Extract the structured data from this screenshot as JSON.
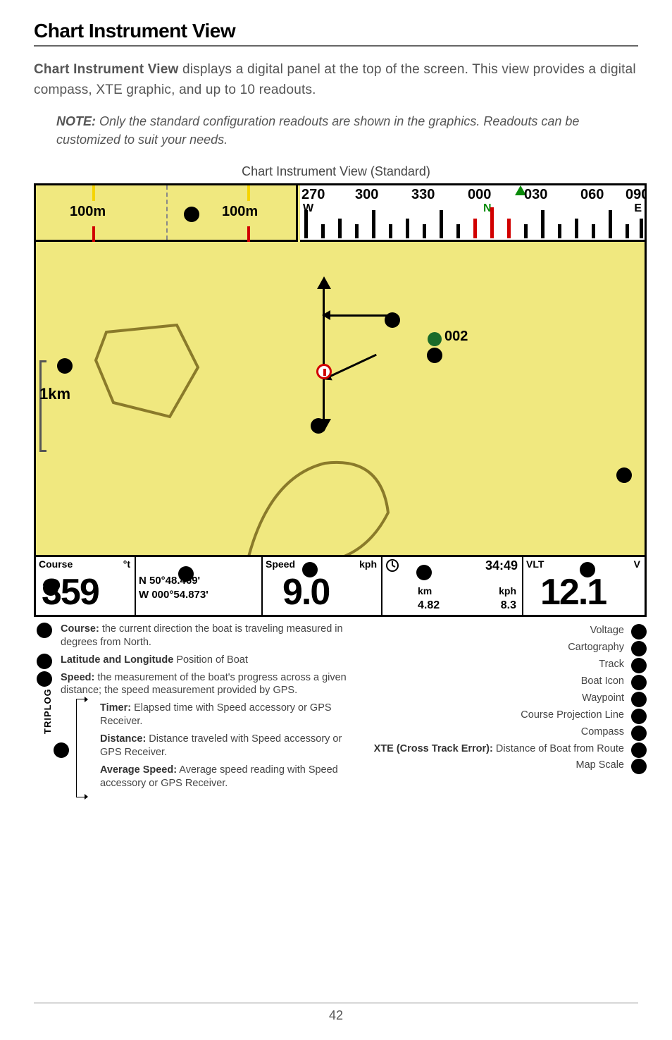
{
  "heading": "Chart Instrument View",
  "intro_bold": "Chart Instrument View",
  "intro_rest": " displays a digital panel at the top of the screen. This view provides a digital compass, XTE graphic, and up to 10 readouts.",
  "note_bold": "NOTE:",
  "note_rest": " Only the standard configuration readouts are shown in the graphics. Readouts can be customized to suit your needs.",
  "figure_caption": "Chart Instrument View (Standard)",
  "xte": {
    "left_label": "100m",
    "right_label": "100m"
  },
  "compass": {
    "values": [
      "270",
      "300",
      "330",
      "000",
      "030",
      "060",
      "090"
    ],
    "n_label": "N",
    "w_label": "W",
    "e_label": "E"
  },
  "map": {
    "waypoint_label": "002",
    "scale_label": "1km"
  },
  "readouts": {
    "course": {
      "hdr": "Course",
      "unit": "°t",
      "value": "359"
    },
    "position": {
      "lat": "N 50°48.469'",
      "lon": "W 000°54.873'"
    },
    "speed": {
      "hdr": "Speed",
      "unit": "kph",
      "value": "9.0"
    },
    "triplog": {
      "time": "34:49",
      "km_label": "km",
      "km": "4.82",
      "kph_label": "kph",
      "kph": "8.3"
    },
    "vlt": {
      "hdr": "VLT",
      "unit": "V",
      "value": "12.1"
    }
  },
  "left_annotations": {
    "course_lbl": "Course:",
    "course_txt": " the current direction the boat is traveling measured in degrees from North.",
    "latlon_lbl": "Latitude and Longitude",
    "latlon_txt": " Position of Boat",
    "speed_lbl": "Speed:",
    "speed_txt": " the measurement of the boat's progress across a given distance; the speed measurement provided by GPS.",
    "triplog_heading": "TRIPLOG",
    "timer_lbl": "Timer:",
    "timer_txt": " Elapsed time with Speed accessory or GPS Receiver.",
    "distance_lbl": "Distance:",
    "distance_txt": " Distance traveled with Speed accessory or GPS Receiver.",
    "avg_lbl": "Average Speed:",
    "avg_txt": " Average speed reading with Speed accessory or GPS Receiver."
  },
  "right_annotations": [
    "Voltage",
    "Cartography",
    "Track",
    "Boat Icon",
    "Waypoint",
    "Course Projection Line",
    "Compass",
    "XTE (Cross Track Error):|Distance of Boat from Route",
    "Map Scale"
  ],
  "page_number": "42"
}
